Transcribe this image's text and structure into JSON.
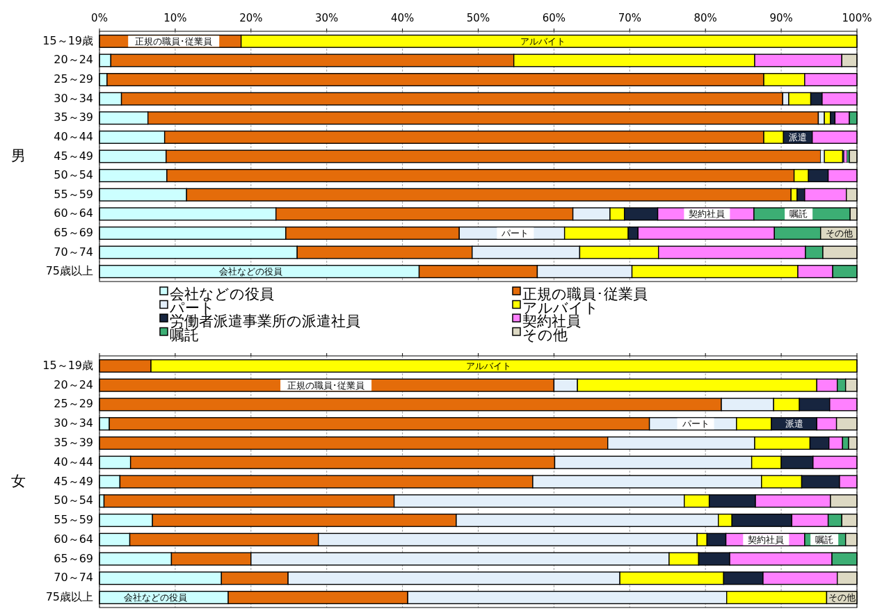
{
  "chart_data": [
    {
      "type": "bar",
      "orientation": "horizontal",
      "stacked": true,
      "ylabel": "男",
      "grid": "x",
      "legend": "bottom",
      "categories": [
        "15～19歳",
        "20～24",
        "25～29",
        "30～34",
        "35～39",
        "40～44",
        "45～49",
        "50～54",
        "55～59",
        "60～64",
        "65～69",
        "70～74",
        "75歳以上"
      ],
      "xlim": [
        0,
        100
      ],
      "xticks": [
        {
          "value": 0,
          "label": "0%"
        },
        {
          "value": 10,
          "label": "10%"
        },
        {
          "value": 20,
          "label": "20%"
        },
        {
          "value": 30,
          "label": "30%"
        },
        {
          "value": 40,
          "label": "40%"
        },
        {
          "value": 50,
          "label": "50%"
        },
        {
          "value": 60,
          "label": "60%"
        },
        {
          "value": 70,
          "label": "70%"
        },
        {
          "value": 80,
          "label": "80%"
        },
        {
          "value": 90,
          "label": "90%"
        },
        {
          "value": 100,
          "label": "100%"
        }
      ],
      "series": [
        {
          "name": "会社などの役員",
          "color": "#ccffff",
          "values": [
            null,
            1.5,
            1.0,
            2.9,
            6.4,
            8.6,
            8.8,
            8.9,
            11.5,
            23.3,
            24.6,
            26.1,
            42.2
          ]
        },
        {
          "name": "正規の職員･従業員",
          "color": "#e46c0a",
          "values": [
            18.7,
            53.2,
            86.7,
            87.3,
            88.5,
            79.1,
            86.4,
            82.8,
            79.8,
            39.2,
            22.9,
            23.1,
            15.6
          ]
        },
        {
          "name": "パート",
          "color": "#e3effa",
          "values": [
            null,
            null,
            null,
            0.8,
            0.8,
            null,
            0.5,
            null,
            null,
            4.9,
            13.9,
            14.2,
            12.5
          ]
        },
        {
          "name": "アルバイト",
          "color": "#ffff00",
          "values": [
            81.3,
            31.8,
            5.4,
            2.9,
            0.8,
            2.6,
            2.4,
            1.9,
            0.8,
            1.9,
            8.4,
            10.4,
            21.9
          ]
        },
        {
          "name": "労働者派遣事業所の派遣社員",
          "color": "#17253f",
          "values": [
            null,
            null,
            null,
            1.5,
            0.6,
            3.8,
            0.2,
            2.6,
            1.0,
            4.4,
            1.3,
            null,
            null
          ]
        },
        {
          "name": "契約社員",
          "color": "#ff80ff",
          "values": [
            null,
            11.5,
            6.9,
            4.6,
            1.9,
            5.9,
            0.4,
            3.8,
            5.5,
            12.7,
            18.0,
            19.4,
            4.6
          ]
        },
        {
          "name": "嘱託",
          "color": "#3cae74",
          "values": [
            null,
            null,
            null,
            null,
            1.0,
            null,
            0.3,
            null,
            null,
            12.7,
            6.1,
            2.3,
            3.2
          ]
        },
        {
          "name": "その他",
          "color": "#ddd9c3",
          "values": [
            null,
            2.0,
            null,
            null,
            null,
            null,
            1.0,
            null,
            1.4,
            0.9,
            4.8,
            4.5,
            null
          ]
        }
      ],
      "annotations": [
        {
          "text": "正規の職員･従業員",
          "x": 9.8,
          "y": "15～19歳"
        },
        {
          "text": "アルバイト",
          "x": 58.5,
          "y": "15～19歳"
        },
        {
          "text": "派遣",
          "x": 92.2,
          "y": "40～44"
        },
        {
          "text": "契約社員",
          "x": 80.2,
          "y": "60～64"
        },
        {
          "text": "嘱託",
          "x": 92.3,
          "y": "60～64"
        },
        {
          "text": "パート",
          "x": 54.9,
          "y": "65～69"
        },
        {
          "text": "その他",
          "x": 97.7,
          "y": "65～69"
        },
        {
          "text": "会社などの役員",
          "x": 20.0,
          "y": "75歳以上"
        }
      ]
    },
    {
      "type": "bar",
      "orientation": "horizontal",
      "stacked": true,
      "ylabel": "女",
      "grid": "x",
      "tick_labels": "y",
      "categories": [
        "15～19歳",
        "20～24",
        "25～29",
        "30～34",
        "35～39",
        "40～44",
        "45～49",
        "50～54",
        "55～59",
        "60～64",
        "65～69",
        "70～74",
        "75歳以上"
      ],
      "xlim": [
        0,
        100
      ],
      "xticks": [
        {
          "value": 0,
          "label": null
        },
        {
          "value": 10,
          "label": null
        },
        {
          "value": 20,
          "label": null
        },
        {
          "value": 30,
          "label": null
        },
        {
          "value": 40,
          "label": null
        },
        {
          "value": 50,
          "label": null
        },
        {
          "value": 60,
          "label": null
        },
        {
          "value": 70,
          "label": null
        },
        {
          "value": 80,
          "label": null
        },
        {
          "value": 90,
          "label": null
        },
        {
          "value": 100,
          "label": null
        }
      ],
      "series": [
        {
          "color": "#ccffff",
          "values": [
            null,
            null,
            null,
            1.3,
            null,
            4.1,
            2.7,
            0.6,
            7.0,
            4.0,
            9.5,
            16.1,
            17.0
          ]
        },
        {
          "color": "#e46c0a",
          "values": [
            6.8,
            60.0,
            82.1,
            71.3,
            67.1,
            56.0,
            54.5,
            38.3,
            40.1,
            24.9,
            10.5,
            8.8,
            23.7
          ]
        },
        {
          "color": "#e3effa",
          "values": [
            null,
            3.1,
            6.9,
            11.5,
            19.4,
            26.0,
            30.2,
            38.3,
            34.6,
            50.0,
            55.2,
            43.8,
            42.1
          ]
        },
        {
          "color": "#ffff00",
          "values": [
            93.2,
            31.6,
            3.4,
            4.6,
            7.3,
            3.9,
            5.3,
            3.3,
            1.8,
            1.3,
            3.9,
            13.7,
            13.2
          ]
        },
        {
          "color": "#17253f",
          "values": [
            null,
            null,
            4.0,
            6.0,
            2.5,
            4.2,
            5.0,
            6.1,
            7.9,
            2.5,
            4.1,
            5.2,
            null
          ]
        },
        {
          "color": "#ff80ff",
          "values": [
            null,
            2.7,
            3.6,
            2.6,
            1.8,
            5.8,
            2.3,
            9.9,
            4.8,
            10.4,
            13.5,
            9.8,
            null
          ]
        },
        {
          "color": "#3cae74",
          "values": [
            null,
            1.1,
            null,
            null,
            0.8,
            null,
            null,
            null,
            1.8,
            5.4,
            3.3,
            null,
            null
          ]
        },
        {
          "color": "#ddd9c3",
          "values": [
            null,
            1.5,
            null,
            2.7,
            1.1,
            null,
            null,
            3.5,
            2.0,
            1.5,
            null,
            2.6,
            4.0
          ]
        }
      ],
      "annotations": [
        {
          "text": "アルバイト",
          "x": 51.4,
          "y": "15～19歳"
        },
        {
          "text": "正規の職員･従業員",
          "x": 29.9,
          "y": "20～24"
        },
        {
          "text": "パート",
          "x": 78.7,
          "y": "30～34"
        },
        {
          "text": "派遣",
          "x": 91.7,
          "y": "30～34"
        },
        {
          "text": "契約社員",
          "x": 88.0,
          "y": "60～64"
        },
        {
          "text": "嘱託",
          "x": 95.7,
          "y": "60～64"
        },
        {
          "text": "その他",
          "x": 98.0,
          "y": "75歳以上"
        },
        {
          "text": "会社などの役員",
          "x": 7.4,
          "y": "75歳以上"
        }
      ]
    }
  ]
}
